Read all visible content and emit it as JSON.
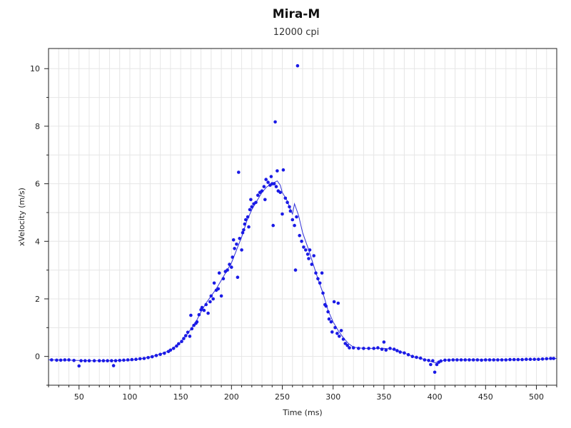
{
  "chart_data": {
    "type": "scatter",
    "title": "Mira-M",
    "subtitle": "12000 cpi",
    "xlabel": "Time (ms)",
    "ylabel": "xVelocity (m/s)",
    "xlim": [
      20,
      520
    ],
    "ylim": [
      -1,
      10.7
    ],
    "xticks": [
      50,
      100,
      150,
      200,
      250,
      300,
      350,
      400,
      450,
      500
    ],
    "yticks": [
      0,
      2,
      4,
      6,
      8,
      10
    ],
    "grid": true,
    "colors": {
      "points": "#1a1ae6",
      "line": "#3232d8",
      "grid": "#e6e6e6",
      "axis": "#222222"
    },
    "series": [
      {
        "kind": "points",
        "points": [
          [
            23,
            -0.12
          ],
          [
            28,
            -0.13
          ],
          [
            32,
            -0.13
          ],
          [
            36,
            -0.12
          ],
          [
            40,
            -0.12
          ],
          [
            45,
            -0.14
          ],
          [
            50,
            -0.33
          ],
          [
            52,
            -0.15
          ],
          [
            56,
            -0.15
          ],
          [
            60,
            -0.15
          ],
          [
            65,
            -0.15
          ],
          [
            70,
            -0.15
          ],
          [
            74,
            -0.15
          ],
          [
            78,
            -0.15
          ],
          [
            82,
            -0.15
          ],
          [
            84,
            -0.32
          ],
          [
            86,
            -0.15
          ],
          [
            90,
            -0.14
          ],
          [
            94,
            -0.13
          ],
          [
            98,
            -0.12
          ],
          [
            102,
            -0.11
          ],
          [
            106,
            -0.1
          ],
          [
            110,
            -0.08
          ],
          [
            114,
            -0.07
          ],
          [
            118,
            -0.04
          ],
          [
            122,
            -0.01
          ],
          [
            126,
            0.03
          ],
          [
            130,
            0.07
          ],
          [
            134,
            0.11
          ],
          [
            138,
            0.17
          ],
          [
            140,
            0.22
          ],
          [
            143,
            0.28
          ],
          [
            146,
            0.36
          ],
          [
            148,
            0.44
          ],
          [
            151,
            0.52
          ],
          [
            153,
            0.62
          ],
          [
            155,
            0.72
          ],
          [
            157,
            0.84
          ],
          [
            159,
            0.7
          ],
          [
            160,
            1.43
          ],
          [
            161,
            0.96
          ],
          [
            163,
            1.08
          ],
          [
            165,
            1.15
          ],
          [
            166,
            1.2
          ],
          [
            168,
            1.45
          ],
          [
            170,
            1.62
          ],
          [
            171,
            1.7
          ],
          [
            173,
            1.6
          ],
          [
            175,
            1.8
          ],
          [
            177,
            1.5
          ],
          [
            179,
            1.9
          ],
          [
            180,
            2.1
          ],
          [
            182,
            2.0
          ],
          [
            183,
            2.55
          ],
          [
            185,
            2.3
          ],
          [
            187,
            2.35
          ],
          [
            188,
            2.9
          ],
          [
            190,
            2.1
          ],
          [
            192,
            2.7
          ],
          [
            194,
            2.95
          ],
          [
            196,
            3.0
          ],
          [
            198,
            3.2
          ],
          [
            200,
            3.1
          ],
          [
            201,
            3.45
          ],
          [
            202,
            4.05
          ],
          [
            203,
            3.75
          ],
          [
            205,
            3.9
          ],
          [
            206,
            2.75
          ],
          [
            207,
            6.4
          ],
          [
            208,
            4.1
          ],
          [
            210,
            3.7
          ],
          [
            211,
            4.3
          ],
          [
            212,
            4.4
          ],
          [
            213,
            4.6
          ],
          [
            214,
            4.75
          ],
          [
            216,
            4.85
          ],
          [
            217,
            4.5
          ],
          [
            218,
            5.1
          ],
          [
            219,
            5.45
          ],
          [
            220,
            5.2
          ],
          [
            222,
            5.3
          ],
          [
            224,
            5.35
          ],
          [
            226,
            5.6
          ],
          [
            228,
            5.7
          ],
          [
            230,
            5.75
          ],
          [
            232,
            5.9
          ],
          [
            233,
            5.45
          ],
          [
            234,
            6.15
          ],
          [
            236,
            6.05
          ],
          [
            238,
            5.95
          ],
          [
            239,
            6.25
          ],
          [
            240,
            6.0
          ],
          [
            241,
            4.55
          ],
          [
            242,
            6.0
          ],
          [
            243,
            8.15
          ],
          [
            244,
            5.9
          ],
          [
            245,
            6.45
          ],
          [
            246,
            5.75
          ],
          [
            248,
            5.7
          ],
          [
            250,
            4.95
          ],
          [
            251,
            6.48
          ],
          [
            253,
            5.5
          ],
          [
            255,
            5.35
          ],
          [
            257,
            5.2
          ],
          [
            258,
            5.05
          ],
          [
            260,
            4.75
          ],
          [
            262,
            4.55
          ],
          [
            263,
            3.0
          ],
          [
            264,
            4.85
          ],
          [
            265,
            10.1
          ],
          [
            267,
            4.2
          ],
          [
            269,
            4.0
          ],
          [
            271,
            3.8
          ],
          [
            273,
            3.7
          ],
          [
            275,
            3.55
          ],
          [
            276,
            3.4
          ],
          [
            277,
            3.7
          ],
          [
            279,
            3.2
          ],
          [
            281,
            3.5
          ],
          [
            283,
            2.9
          ],
          [
            285,
            2.7
          ],
          [
            287,
            2.55
          ],
          [
            289,
            2.9
          ],
          [
            290,
            2.2
          ],
          [
            292,
            1.8
          ],
          [
            293,
            1.75
          ],
          [
            295,
            1.55
          ],
          [
            296,
            1.3
          ],
          [
            298,
            1.2
          ],
          [
            299,
            0.85
          ],
          [
            301,
            1.9
          ],
          [
            302,
            1.0
          ],
          [
            304,
            0.8
          ],
          [
            305,
            1.85
          ],
          [
            306,
            0.7
          ],
          [
            308,
            0.9
          ],
          [
            310,
            0.6
          ],
          [
            312,
            0.45
          ],
          [
            314,
            0.38
          ],
          [
            316,
            0.3
          ],
          [
            320,
            0.3
          ],
          [
            325,
            0.28
          ],
          [
            330,
            0.28
          ],
          [
            335,
            0.28
          ],
          [
            340,
            0.28
          ],
          [
            344,
            0.3
          ],
          [
            348,
            0.25
          ],
          [
            350,
            0.5
          ],
          [
            352,
            0.22
          ],
          [
            356,
            0.28
          ],
          [
            360,
            0.25
          ],
          [
            363,
            0.2
          ],
          [
            366,
            0.15
          ],
          [
            370,
            0.12
          ],
          [
            374,
            0.06
          ],
          [
            378,
            0.0
          ],
          [
            382,
            -0.03
          ],
          [
            386,
            -0.06
          ],
          [
            390,
            -0.12
          ],
          [
            394,
            -0.14
          ],
          [
            396,
            -0.28
          ],
          [
            398,
            -0.15
          ],
          [
            400,
            -0.55
          ],
          [
            402,
            -0.28
          ],
          [
            404,
            -0.2
          ],
          [
            406,
            -0.16
          ],
          [
            410,
            -0.13
          ],
          [
            414,
            -0.13
          ],
          [
            418,
            -0.12
          ],
          [
            422,
            -0.12
          ],
          [
            426,
            -0.12
          ],
          [
            430,
            -0.12
          ],
          [
            434,
            -0.12
          ],
          [
            438,
            -0.12
          ],
          [
            442,
            -0.12
          ],
          [
            446,
            -0.13
          ],
          [
            450,
            -0.12
          ],
          [
            454,
            -0.12
          ],
          [
            458,
            -0.12
          ],
          [
            462,
            -0.12
          ],
          [
            466,
            -0.12
          ],
          [
            470,
            -0.12
          ],
          [
            474,
            -0.11
          ],
          [
            478,
            -0.11
          ],
          [
            482,
            -0.11
          ],
          [
            486,
            -0.11
          ],
          [
            490,
            -0.1
          ],
          [
            494,
            -0.1
          ],
          [
            498,
            -0.1
          ],
          [
            502,
            -0.1
          ],
          [
            506,
            -0.09
          ],
          [
            510,
            -0.08
          ],
          [
            514,
            -0.07
          ],
          [
            517,
            -0.07
          ]
        ]
      },
      {
        "kind": "line",
        "points": [
          [
            20,
            -0.12
          ],
          [
            40,
            -0.13
          ],
          [
            60,
            -0.15
          ],
          [
            80,
            -0.15
          ],
          [
            100,
            -0.13
          ],
          [
            110,
            -0.09
          ],
          [
            120,
            -0.02
          ],
          [
            130,
            0.08
          ],
          [
            140,
            0.22
          ],
          [
            150,
            0.5
          ],
          [
            155,
            0.7
          ],
          [
            160,
            0.95
          ],
          [
            165,
            1.2
          ],
          [
            170,
            1.55
          ],
          [
            175,
            1.85
          ],
          [
            180,
            2.1
          ],
          [
            185,
            2.35
          ],
          [
            190,
            2.65
          ],
          [
            195,
            2.95
          ],
          [
            200,
            3.25
          ],
          [
            205,
            3.7
          ],
          [
            210,
            4.15
          ],
          [
            215,
            4.7
          ],
          [
            220,
            5.1
          ],
          [
            225,
            5.4
          ],
          [
            230,
            5.7
          ],
          [
            235,
            5.9
          ],
          [
            240,
            6.0
          ],
          [
            245,
            6.1
          ],
          [
            248,
            5.95
          ],
          [
            250,
            5.7
          ],
          [
            255,
            5.4
          ],
          [
            258,
            5.1
          ],
          [
            260,
            4.95
          ],
          [
            262,
            5.3
          ],
          [
            264,
            5.1
          ],
          [
            266,
            4.9
          ],
          [
            270,
            4.3
          ],
          [
            275,
            3.8
          ],
          [
            280,
            3.25
          ],
          [
            285,
            2.7
          ],
          [
            290,
            2.2
          ],
          [
            295,
            1.6
          ],
          [
            300,
            1.2
          ],
          [
            305,
            0.9
          ],
          [
            310,
            0.65
          ],
          [
            315,
            0.45
          ],
          [
            320,
            0.32
          ],
          [
            330,
            0.28
          ],
          [
            340,
            0.28
          ],
          [
            350,
            0.28
          ],
          [
            360,
            0.25
          ],
          [
            370,
            0.12
          ],
          [
            380,
            -0.02
          ],
          [
            390,
            -0.1
          ],
          [
            400,
            -0.22
          ],
          [
            405,
            -0.18
          ],
          [
            410,
            -0.13
          ],
          [
            420,
            -0.12
          ],
          [
            440,
            -0.12
          ],
          [
            460,
            -0.12
          ],
          [
            480,
            -0.11
          ],
          [
            500,
            -0.1
          ],
          [
            520,
            -0.07
          ]
        ]
      }
    ]
  }
}
